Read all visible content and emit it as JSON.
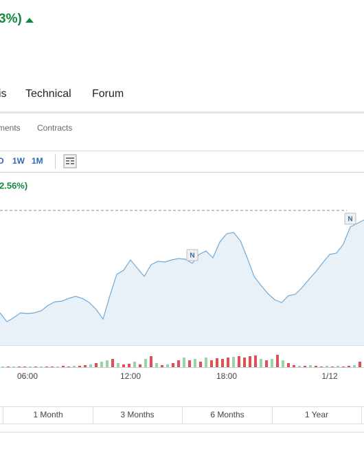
{
  "header": {
    "change": "3%)"
  },
  "tabs": [
    "is",
    "Technical",
    "Forum"
  ],
  "subtabs": [
    "ments",
    "Contracts"
  ],
  "timeframes": [
    "D",
    "1W",
    "1M"
  ],
  "ranges": [
    "1 Month",
    "3 Months",
    "6 Months",
    "1 Year"
  ],
  "chart_data": {
    "type": "line",
    "subtitle": "2.56%)",
    "categories": [
      null,
      null,
      null,
      null,
      "06:00",
      null,
      null,
      null,
      null,
      null,
      null,
      null,
      null,
      null,
      null,
      null,
      null,
      null,
      null,
      "12:00",
      null,
      null,
      null,
      null,
      null,
      null,
      null,
      null,
      null,
      null,
      null,
      null,
      null,
      "18:00",
      null,
      null,
      null,
      null,
      null,
      null,
      null,
      null,
      null,
      null,
      null,
      null,
      null,
      null,
      "1/12",
      null,
      null,
      null,
      null,
      null
    ],
    "values": [
      23.5,
      17,
      20,
      23.5,
      23,
      23.5,
      25,
      29,
      31.5,
      32,
      34,
      35.5,
      34,
      31,
      26,
      19,
      36,
      51.5,
      54.5,
      62,
      56,
      50,
      58.5,
      61,
      60.5,
      62,
      63,
      62.5,
      59.5,
      66,
      68.5,
      63.5,
      75,
      81,
      82,
      76,
      63.5,
      50,
      43.5,
      37.5,
      33,
      31,
      36,
      37,
      42,
      48,
      53.5,
      60,
      66,
      67,
      73.5,
      86,
      88.5,
      91
    ],
    "color": "#6fa8d6",
    "ylim": [
      0,
      100
    ],
    "markers": [
      {
        "index": 28,
        "label": "N"
      },
      {
        "index": 51,
        "label": "N"
      }
    ],
    "volume": {
      "values": [
        1,
        1,
        1,
        1,
        1,
        1,
        1,
        1,
        1,
        1,
        1,
        2,
        1,
        2,
        2,
        3,
        4,
        6,
        8,
        10,
        12,
        6,
        4,
        5,
        8,
        4,
        12,
        16,
        6,
        3,
        4,
        6,
        10,
        14,
        10,
        12,
        8,
        14,
        10,
        13,
        12,
        14,
        15,
        16,
        14,
        16,
        17,
        12,
        10,
        12,
        18,
        10,
        6,
        3,
        2,
        2,
        3,
        2,
        1,
        2,
        1,
        2,
        1,
        2,
        3,
        8
      ],
      "up": [
        true,
        false,
        true,
        false,
        false,
        true,
        false,
        true,
        false,
        false,
        true,
        false,
        false,
        true,
        false,
        false,
        true,
        false,
        true,
        true,
        false,
        true,
        false,
        false,
        true,
        false,
        true,
        false,
        true,
        false,
        true,
        false,
        false,
        true,
        false,
        true,
        false,
        true,
        false,
        false,
        false,
        false,
        true,
        false,
        false,
        false,
        false,
        true,
        false,
        true,
        false,
        true,
        false,
        false,
        true,
        false,
        true,
        false,
        false,
        true,
        false,
        true,
        false,
        false,
        true,
        false
      ],
      "up_color": "#9fd1a9",
      "down_color": "#d9534f",
      "ylim": [
        0,
        32
      ]
    }
  }
}
